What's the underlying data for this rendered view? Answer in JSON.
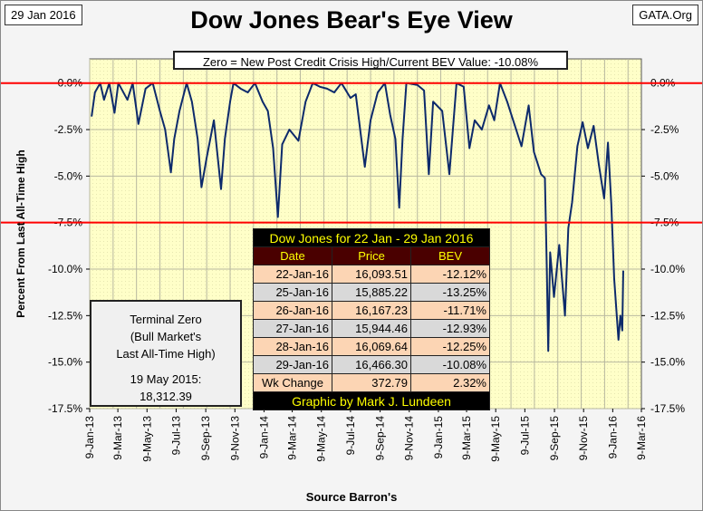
{
  "header": {
    "date": "29 Jan 2016",
    "title": "Dow Jones Bear's Eye View",
    "site": "GATA.Org"
  },
  "note": "Zero = New Post Credit Crisis High/Current BEV Value:  -10.08%",
  "terminal": {
    "line1": "Terminal Zero",
    "line2": "(Bull Market's",
    "line3": "Last All-Time High)",
    "line4": "19 May 2015:",
    "line5": "18,312.39"
  },
  "table": {
    "title": "Dow Jones for 22 Jan - 29 Jan 2016",
    "columns": [
      "Date",
      "Price",
      "BEV"
    ],
    "rows": [
      [
        "22-Jan-16",
        "16,093.51",
        "-12.12%"
      ],
      [
        "25-Jan-16",
        "15,885.22",
        "-13.25%"
      ],
      [
        "26-Jan-16",
        "16,167.23",
        "-11.71%"
      ],
      [
        "27-Jan-16",
        "15,944.46",
        "-12.93%"
      ],
      [
        "28-Jan-16",
        "16,069.64",
        "-12.25%"
      ],
      [
        "29-Jan-16",
        "16,466.30",
        "-10.08%"
      ],
      [
        "Wk Change",
        "372.79",
        "2.32%"
      ]
    ],
    "footer": "Graphic by Mark J. Lundeen"
  },
  "chart_data": {
    "type": "line",
    "title": "Dow Jones Bear's Eye View",
    "xlabel": "Source Barron's",
    "ylabel": "Percent From Last All-Time High",
    "x_unit": "days since 9-Jan-13",
    "ylim": [
      -17.5,
      1.3
    ],
    "xlim_days": [
      0,
      1155
    ],
    "yticks": [
      0,
      -2.5,
      -5,
      -7.5,
      -10,
      -12.5,
      -15,
      -17.5
    ],
    "ytick_labels": [
      "0.0%",
      "-2.5%",
      "-5.0%",
      "-7.5%",
      "-10.0%",
      "-12.5%",
      "-15.0%",
      "-17.5%"
    ],
    "xtick_labels": [
      "9-Jan-13",
      "9-Mar-13",
      "9-May-13",
      "9-Jul-13",
      "9-Sep-13",
      "9-Nov-13",
      "9-Jan-14",
      "9-Mar-14",
      "9-May-14",
      "9-Jul-14",
      "9-Sep-14",
      "9-Nov-14",
      "9-Jan-15",
      "9-Mar-15",
      "9-May-15",
      "9-Jul-15",
      "9-Sep-15",
      "9-Nov-15",
      "9-Jan-16",
      "9-Mar-16"
    ],
    "xtick_days": [
      0,
      59,
      120,
      181,
      243,
      304,
      365,
      424,
      485,
      546,
      608,
      669,
      730,
      789,
      850,
      911,
      973,
      1034,
      1095,
      1155
    ],
    "reference_lines": [
      0,
      -7.5
    ],
    "colors": {
      "line": "#0d2a6b",
      "ref": "#ff0000",
      "plot_bg": "#ffffc8",
      "grid": "#b8b8a0"
    },
    "series": [
      {
        "name": "Dow Jones BEV",
        "x": [
          4,
          11,
          22,
          30,
          41,
          52,
          60,
          79,
          90,
          102,
          117,
          132,
          147,
          158,
          170,
          177,
          188,
          203,
          214,
          226,
          234,
          245,
          260,
          275,
          283,
          294,
          301,
          316,
          331,
          346,
          362,
          373,
          384,
          394,
          403,
          418,
          437,
          452,
          467,
          482,
          497,
          512,
          527,
          546,
          557,
          576,
          588,
          603,
          618,
          629,
          640,
          648,
          655,
          663,
          686,
          700,
          710,
          719,
          738,
          753,
          768,
          783,
          795,
          806,
          821,
          836,
          847,
          859,
          874,
          889,
          904,
          919,
          930,
          945,
          953,
          957,
          960,
          964,
          972,
          983,
          995,
          1002,
          1010,
          1021,
          1032,
          1043,
          1055,
          1066,
          1077,
          1085,
          1092,
          1098,
          1107,
          1111,
          1115,
          1117
        ],
        "y": [
          -1.8,
          -0.5,
          0,
          -0.9,
          0,
          -1.6,
          0,
          -0.9,
          0,
          -2.2,
          -0.3,
          0,
          -1.5,
          -2.5,
          -4.8,
          -3.0,
          -1.5,
          0,
          -1.0,
          -3.0,
          -5.6,
          -4.0,
          -2.0,
          -5.7,
          -3.0,
          -1.0,
          0,
          -0.3,
          -0.5,
          0,
          -1.0,
          -1.5,
          -3.5,
          -7.2,
          -3.3,
          -2.5,
          -3.1,
          -1.0,
          0,
          -0.2,
          -0.3,
          -0.5,
          0,
          -0.8,
          -0.6,
          -4.5,
          -2.0,
          -0.5,
          0,
          -1.7,
          -3.0,
          -6.7,
          -3.0,
          0,
          -0.1,
          -0.4,
          -4.9,
          -1.0,
          -1.5,
          -4.9,
          0,
          -0.2,
          -3.5,
          -2.0,
          -2.5,
          -1.2,
          -2.0,
          0,
          -1.0,
          -2.2,
          -3.4,
          -1.2,
          -3.7,
          -4.9,
          -5.1,
          -10.0,
          -14.4,
          -9.1,
          -11.5,
          -8.7,
          -12.5,
          -7.8,
          -6.4,
          -3.4,
          -2.1,
          -3.5,
          -2.3,
          -4.4,
          -6.2,
          -3.2,
          -6.5,
          -10.5,
          -13.8,
          -12.5,
          -13.3,
          -10.08
        ]
      }
    ]
  }
}
